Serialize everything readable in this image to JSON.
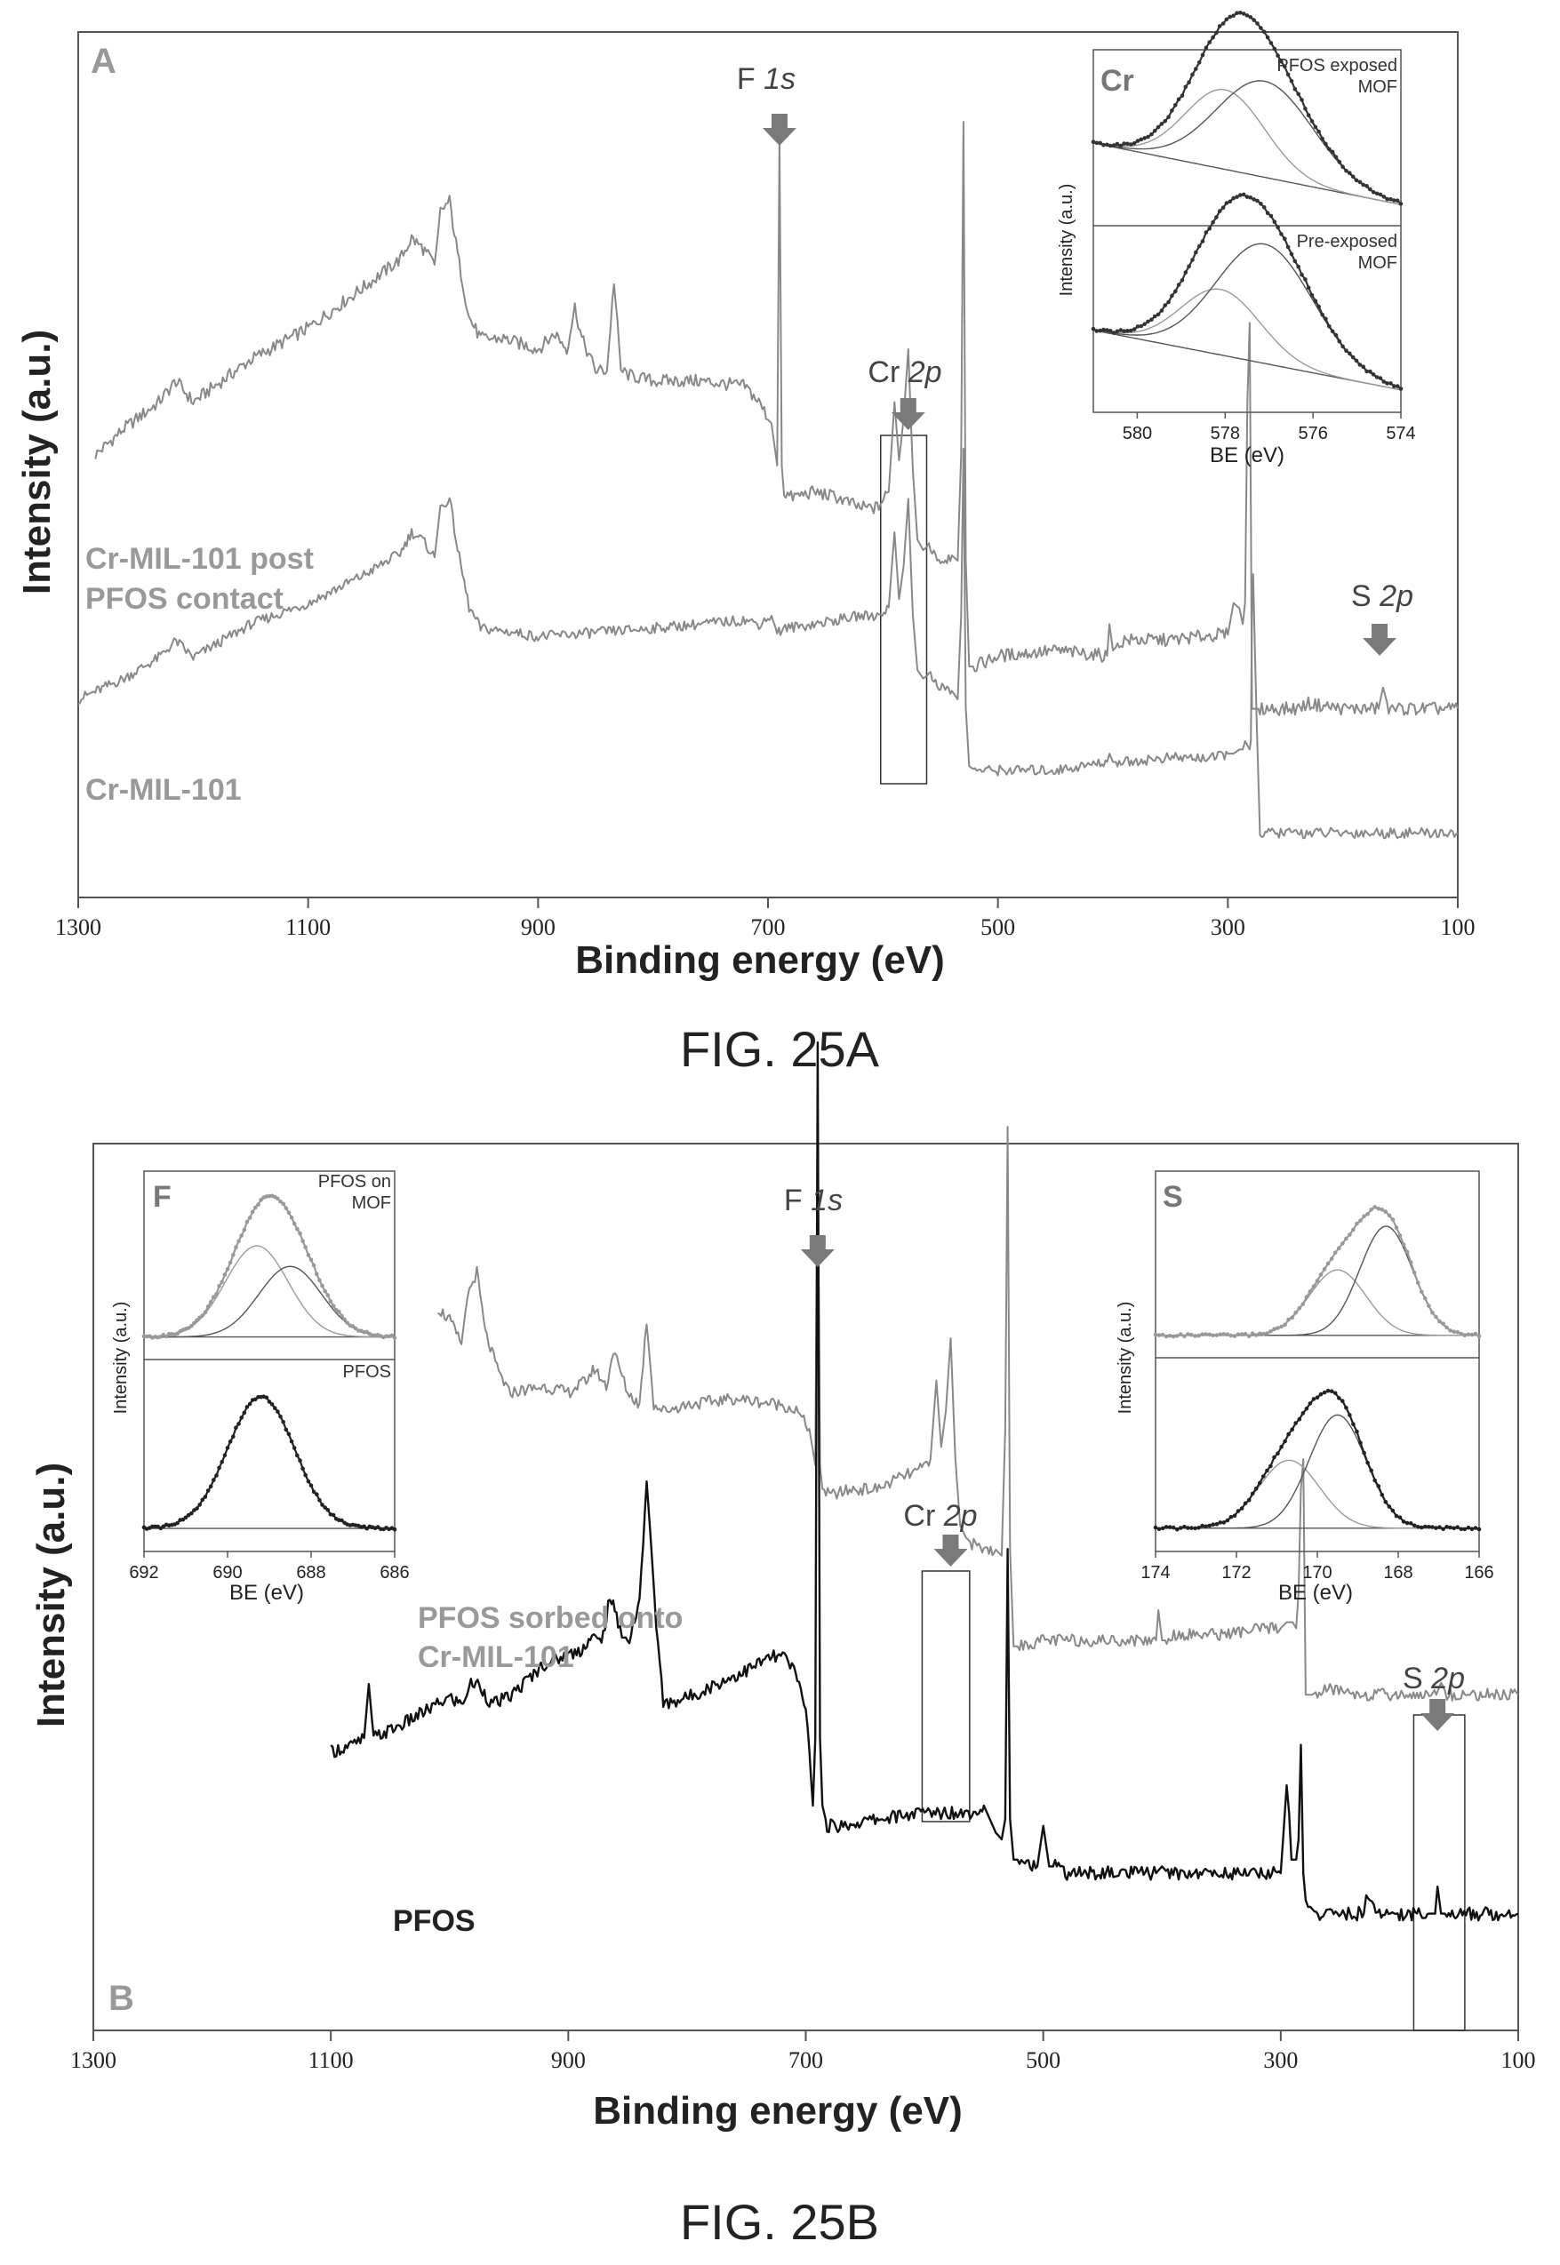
{
  "figure": {
    "caption_a": "FIG. 25A",
    "caption_b": "FIG. 25B"
  },
  "chart_data": [
    {
      "type": "line",
      "panel_label": "A",
      "title": "",
      "xlabel": "Binding energy (eV)",
      "ylabel": "Intensity (a.u.)",
      "xlim": [
        1300,
        100
      ],
      "x_reversed": true,
      "xticks": [
        1300,
        1100,
        900,
        700,
        500,
        300,
        100
      ],
      "peak_annotations": [
        {
          "label": "F",
          "italic": "1s",
          "x": 690
        },
        {
          "label": "Cr",
          "italic": "2p",
          "x": 578,
          "box_x": [
            602,
            562
          ]
        },
        {
          "label": "S",
          "italic": "2p",
          "x": 168
        }
      ],
      "series": [
        {
          "name": "Cr-MIL-101 post PFOS contact",
          "name_lines": [
            "Cr-MIL-101 post",
            "PFOS contact"
          ],
          "color": "#888888",
          "x": [
            1285,
            1260,
            1230,
            1215,
            1200,
            1150,
            1100,
            1050,
            1020,
            1010,
            1000,
            990,
            985,
            977,
            970,
            960,
            950,
            930,
            900,
            885,
            875,
            868,
            862,
            850,
            840,
            834,
            828,
            820,
            800,
            760,
            720,
            708,
            697,
            692,
            690,
            688,
            686,
            680,
            660,
            640,
            620,
            605,
            595,
            590,
            586,
            582,
            578,
            574,
            570,
            565,
            560,
            550,
            540,
            535,
            532,
            530,
            528,
            525,
            520,
            500,
            450,
            405,
            403,
            400,
            396,
            390,
            350,
            310,
            300,
            295,
            290,
            287,
            285,
            283,
            281,
            280,
            279,
            278,
            275,
            272,
            260,
            240,
            230,
            200,
            175,
            169,
            165,
            160,
            120,
            100
          ],
          "y": [
            0.4,
            0.45,
            0.5,
            0.54,
            0.5,
            0.58,
            0.64,
            0.72,
            0.77,
            0.81,
            0.79,
            0.76,
            0.86,
            0.88,
            0.78,
            0.66,
            0.62,
            0.62,
            0.6,
            0.63,
            0.6,
            0.68,
            0.62,
            0.56,
            0.56,
            0.73,
            0.56,
            0.55,
            0.54,
            0.54,
            0.53,
            0.5,
            0.46,
            0.38,
            1.0,
            0.38,
            0.33,
            0.32,
            0.33,
            0.32,
            0.3,
            0.3,
            0.33,
            0.5,
            0.39,
            0.47,
            0.6,
            0.37,
            0.24,
            0.22,
            0.23,
            0.2,
            0.21,
            0.2,
            0.4,
            1.03,
            0.2,
            0.0,
            0.0,
            0.02,
            0.03,
            0.02,
            0.08,
            0.03,
            0.04,
            0.05,
            0.05,
            0.06,
            0.06,
            0.12,
            0.11,
            0.08,
            0.12,
            0.5,
            0.65,
            0.3,
            -0.08,
            -0.08,
            -0.08,
            -0.08,
            -0.08,
            -0.08,
            -0.07,
            -0.08,
            -0.08,
            -0.08,
            -0.04,
            -0.08,
            -0.08,
            -0.08
          ]
        },
        {
          "name": "Cr-MIL-101",
          "color": "#888888",
          "x": [
            1300,
            1260,
            1230,
            1215,
            1200,
            1150,
            1100,
            1050,
            1020,
            1010,
            1000,
            990,
            985,
            977,
            970,
            960,
            950,
            920,
            900,
            800,
            720,
            708,
            697,
            692,
            685,
            660,
            640,
            620,
            605,
            595,
            590,
            586,
            582,
            578,
            574,
            570,
            565,
            560,
            550,
            540,
            535,
            532,
            530,
            528,
            525,
            520,
            500,
            450,
            405,
            403,
            400,
            396,
            390,
            350,
            310,
            300,
            295,
            290,
            287,
            285,
            283,
            281,
            280,
            279,
            278,
            275,
            272,
            260,
            200,
            160,
            100
          ],
          "y": [
            0.4,
            0.45,
            0.5,
            0.54,
            0.5,
            0.58,
            0.63,
            0.7,
            0.75,
            0.8,
            0.78,
            0.74,
            0.86,
            0.88,
            0.76,
            0.62,
            0.57,
            0.56,
            0.55,
            0.57,
            0.59,
            0.58,
            0.6,
            0.56,
            0.57,
            0.58,
            0.59,
            0.6,
            0.6,
            0.62,
            0.8,
            0.64,
            0.72,
            0.88,
            0.6,
            0.47,
            0.45,
            0.46,
            0.43,
            0.42,
            0.4,
            0.6,
            1.0,
            0.38,
            0.24,
            0.23,
            0.23,
            0.23,
            0.25,
            0.27,
            0.25,
            0.25,
            0.25,
            0.26,
            0.26,
            0.27,
            0.27,
            0.28,
            0.28,
            0.3,
            0.29,
            0.28,
            0.3,
            0.6,
            0.7,
            0.35,
            0.08,
            0.08,
            0.08,
            0.08,
            0.08
          ]
        }
      ],
      "inset": {
        "tag": "Cr",
        "xlabel": "BE (eV)",
        "ylabel": "Intensity (a.u.)",
        "xlim": [
          581,
          574
        ],
        "xticks": [
          580,
          578,
          576,
          574
        ],
        "subplots": [
          {
            "label_lines": [
              "PFOS exposed",
              "MOF"
            ],
            "peaks": [
              {
                "center": 578.0,
                "amp": 0.58,
                "sigma": 0.9
              },
              {
                "center": 577.1,
                "amp": 0.7,
                "sigma": 1.1
              }
            ]
          },
          {
            "label_lines": [
              "Pre-exposed",
              "MOF"
            ],
            "peaks": [
              {
                "center": 578.1,
                "amp": 0.45,
                "sigma": 0.9
              },
              {
                "center": 577.1,
                "amp": 0.82,
                "sigma": 1.1
              }
            ]
          }
        ]
      }
    },
    {
      "type": "line",
      "panel_label": "B",
      "title": "",
      "xlabel": "Binding energy (eV)",
      "ylabel": "Intensity (a.u.)",
      "xlim": [
        1300,
        100
      ],
      "x_reversed": true,
      "xticks": [
        1300,
        1100,
        900,
        700,
        500,
        300,
        100
      ],
      "peak_annotations": [
        {
          "label": "F",
          "italic": "1s",
          "x": 690
        },
        {
          "label": "Cr",
          "italic": "2p",
          "x": 578,
          "box_x": [
            602,
            562
          ]
        },
        {
          "label": "S",
          "italic": "2p",
          "x": 168,
          "box_x": [
            188,
            145
          ]
        }
      ],
      "series": [
        {
          "name": "PFOS sorbed onto Cr-MIL-101",
          "name_lines": [
            "PFOS sorbed onto",
            "Cr-MIL-101"
          ],
          "color": "#888888",
          "x": [
            1010,
            1000,
            990,
            985,
            977,
            970,
            960,
            950,
            920,
            900,
            885,
            878,
            868,
            862,
            850,
            840,
            834,
            828,
            820,
            800,
            760,
            720,
            708,
            697,
            692,
            690,
            688,
            686,
            680,
            660,
            640,
            620,
            605,
            595,
            590,
            586,
            582,
            578,
            574,
            570,
            565,
            560,
            550,
            540,
            535,
            532,
            530,
            528,
            525,
            520,
            500,
            450,
            405,
            403,
            400,
            396,
            390,
            350,
            310,
            300,
            295,
            290,
            287,
            285,
            283,
            281,
            280,
            279,
            278,
            275,
            272,
            260,
            230,
            200,
            175,
            169,
            165,
            160,
            120,
            100
          ],
          "y": [
            0.6,
            0.58,
            0.54,
            0.62,
            0.66,
            0.56,
            0.5,
            0.46,
            0.47,
            0.46,
            0.48,
            0.5,
            0.47,
            0.53,
            0.46,
            0.44,
            0.58,
            0.44,
            0.43,
            0.44,
            0.45,
            0.44,
            0.43,
            0.4,
            0.34,
            0.95,
            0.34,
            0.3,
            0.29,
            0.3,
            0.3,
            0.32,
            0.33,
            0.35,
            0.48,
            0.37,
            0.43,
            0.55,
            0.35,
            0.24,
            0.22,
            0.21,
            0.2,
            0.2,
            0.19,
            0.4,
            0.9,
            0.2,
            0.04,
            0.04,
            0.05,
            0.05,
            0.05,
            0.1,
            0.05,
            0.05,
            0.06,
            0.06,
            0.07,
            0.07,
            0.08,
            0.08,
            0.07,
            0.13,
            0.3,
            0.35,
            0.16,
            -0.04,
            -0.04,
            -0.04,
            -0.04,
            -0.03,
            -0.04,
            -0.04,
            -0.04,
            -0.04,
            -0.02,
            -0.04,
            -0.04,
            -0.04
          ]
        },
        {
          "name": "PFOS",
          "color": "#111111",
          "x": [
            1100,
            1080,
            1072,
            1068,
            1064,
            1040,
            1000,
            990,
            982,
            975,
            965,
            950,
            920,
            890,
            880,
            872,
            865,
            858,
            850,
            840,
            834,
            830,
            826,
            820,
            800,
            750,
            730,
            718,
            710,
            700,
            694,
            692,
            690,
            688,
            686,
            682,
            670,
            640,
            600,
            580,
            560,
            550,
            545,
            540,
            535,
            532,
            530,
            528,
            525,
            520,
            505,
            500,
            495,
            490,
            480,
            450,
            405,
            400,
            395,
            350,
            300,
            295,
            293,
            291,
            289,
            287,
            285,
            283,
            281,
            279,
            277,
            275,
            270,
            260,
            240,
            230,
            228,
            220,
            200,
            175,
            170,
            168,
            165,
            160,
            150,
            120,
            100
          ],
          "y": [
            -0.12,
            -0.11,
            -0.1,
            -0.02,
            -0.1,
            -0.08,
            -0.04,
            -0.05,
            -0.02,
            -0.02,
            -0.05,
            -0.04,
            0.01,
            0.03,
            0.05,
            0.04,
            0.11,
            0.07,
            0.04,
            0.1,
            0.28,
            0.18,
            0.07,
            -0.05,
            -0.04,
            0.0,
            0.02,
            0.02,
            0.0,
            -0.05,
            -0.2,
            -0.1,
            0.93,
            -0.1,
            -0.2,
            -0.23,
            -0.23,
            -0.22,
            -0.21,
            -0.21,
            -0.21,
            -0.2,
            -0.22,
            -0.24,
            -0.25,
            -0.22,
            0.18,
            -0.22,
            -0.28,
            -0.28,
            -0.29,
            -0.23,
            -0.29,
            -0.29,
            -0.3,
            -0.3,
            -0.3,
            -0.29,
            -0.3,
            -0.3,
            -0.3,
            -0.17,
            -0.21,
            -0.28,
            -0.28,
            -0.28,
            -0.25,
            -0.11,
            -0.3,
            -0.34,
            -0.35,
            -0.35,
            -0.36,
            -0.36,
            -0.36,
            -0.36,
            -0.33,
            -0.36,
            -0.36,
            -0.36,
            -0.36,
            -0.32,
            -0.36,
            -0.36,
            -0.36,
            -0.36,
            -0.36
          ]
        }
      ],
      "inset_left": {
        "tag": "F",
        "xlabel": "BE (eV)",
        "ylabel": "Intensity (a.u.)",
        "xlim": [
          692,
          686
        ],
        "xticks": [
          692,
          690,
          688,
          686
        ],
        "subplots": [
          {
            "label_lines": [
              "PFOS on",
              "MOF"
            ],
            "peaks": [
              {
                "center": 689.3,
                "amp": 0.62,
                "sigma": 0.75
              },
              {
                "center": 688.5,
                "amp": 0.48,
                "sigma": 0.75
              }
            ]
          },
          {
            "label_lines": [
              "PFOS"
            ],
            "peaks": [
              {
                "center": 689.2,
                "amp": 0.88,
                "sigma": 0.8
              }
            ]
          }
        ]
      },
      "inset_right": {
        "tag": "S",
        "xlabel": "BE (eV)",
        "ylabel": "Intensity (a.u.)",
        "xlim": [
          174,
          166
        ],
        "xticks": [
          174,
          172,
          170,
          168,
          166
        ],
        "subplots": [
          {
            "label_lines": [],
            "peaks": [
              {
                "center": 169.5,
                "amp": 0.45,
                "sigma": 0.7
              },
              {
                "center": 168.3,
                "amp": 0.75,
                "sigma": 0.65
              }
            ]
          },
          {
            "label_lines": [],
            "peaks": [
              {
                "center": 170.7,
                "amp": 0.45,
                "sigma": 0.75
              },
              {
                "center": 169.5,
                "amp": 0.75,
                "sigma": 0.7
              }
            ]
          }
        ]
      }
    }
  ]
}
